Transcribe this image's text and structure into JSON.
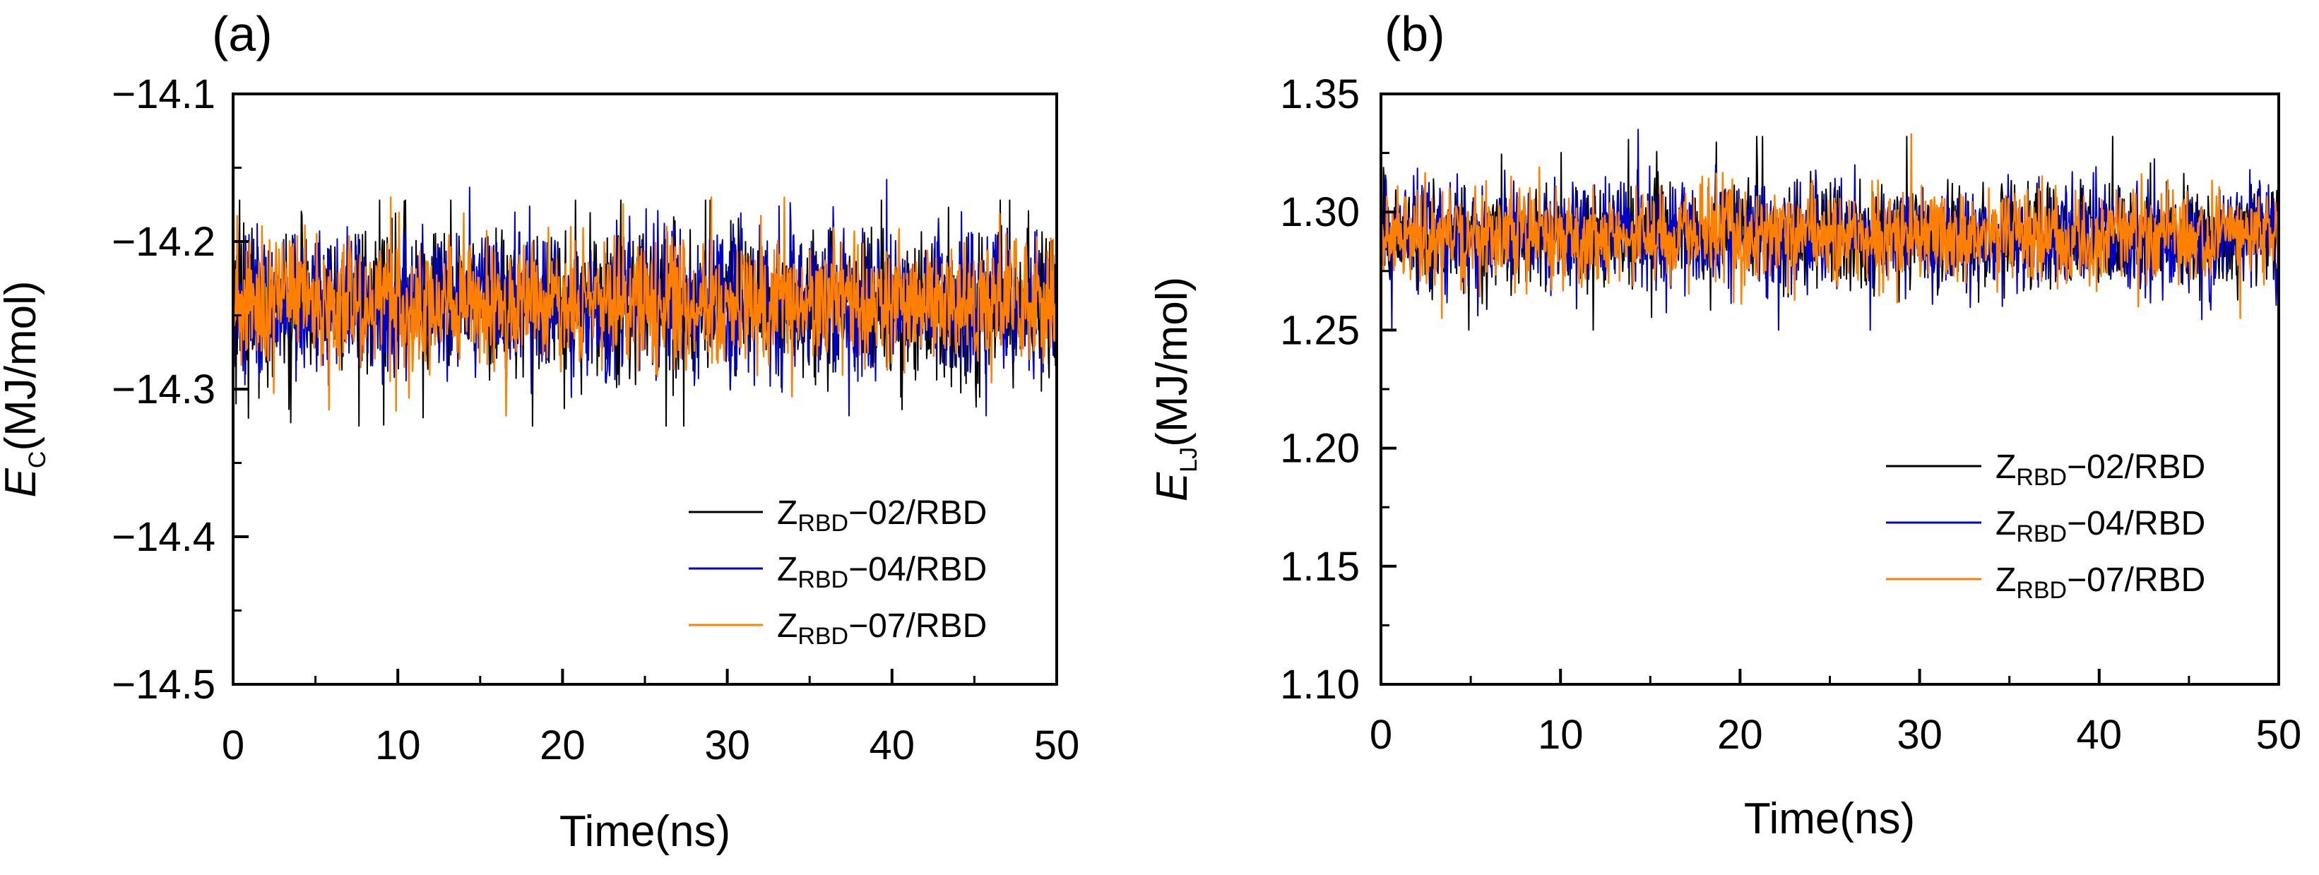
{
  "chart_data": [
    {
      "panel_label": "(a)",
      "type": "line",
      "xlabel": "Time(ns)",
      "ylabel_symbol": "E",
      "ylabel_sub": "C",
      "ylabel_unit": "(MJ/mol)",
      "xlim": [
        0,
        50
      ],
      "ylim": [
        -14.5,
        -14.1
      ],
      "xticks": [
        "0",
        "10",
        "20",
        "30",
        "40",
        "50"
      ],
      "yticks": [
        "−14.5",
        "−14.4",
        "−14.3",
        "−14.2",
        "−14.1"
      ],
      "legend_position": "lower-right",
      "series": [
        {
          "name_main": "Z",
          "name_sub": "RBD",
          "name_tail": "−02/RBD",
          "color": "#000000",
          "mean": -14.243,
          "fluctuation": 0.025,
          "spike_min": -14.325,
          "spike_max": -14.172
        },
        {
          "name_main": "Z",
          "name_sub": "RBD",
          "name_tail": "−04/RBD",
          "color": "#0000cc",
          "mean": -14.242,
          "fluctuation": 0.025,
          "spike_min": -14.318,
          "spike_max": -14.158
        },
        {
          "name_main": "Z",
          "name_sub": "RBD",
          "name_tail": "−07/RBD",
          "color": "#ff8000",
          "mean": -14.242,
          "fluctuation": 0.022,
          "spike_min": -14.318,
          "spike_max": -14.17
        }
      ]
    },
    {
      "panel_label": "(b)",
      "type": "line",
      "xlabel": "Time(ns)",
      "ylabel_symbol": "E",
      "ylabel_sub": "LJ",
      "ylabel_unit": "(MJ/mol)",
      "xlim": [
        0,
        50
      ],
      "ylim": [
        1.1,
        1.35
      ],
      "xticks": [
        "0",
        "10",
        "20",
        "30",
        "40",
        "50"
      ],
      "yticks": [
        "1.10",
        "1.15",
        "1.20",
        "1.25",
        "1.30",
        "1.35"
      ],
      "legend_position": "lower-right",
      "series": [
        {
          "name_main": "Z",
          "name_sub": "RBD",
          "name_tail": "−02/RBD",
          "color": "#000000",
          "mean": 1.29,
          "fluctuation": 0.011,
          "spike_min": 1.25,
          "spike_max": 1.332
        },
        {
          "name_main": "Z",
          "name_sub": "RBD",
          "name_tail": "−04/RBD",
          "color": "#0000cc",
          "mean": 1.29,
          "fluctuation": 0.011,
          "spike_min": 1.25,
          "spike_max": 1.335
        },
        {
          "name_main": "Z",
          "name_sub": "RBD",
          "name_tail": "−07/RBD",
          "color": "#ff8000",
          "mean": 1.29,
          "fluctuation": 0.01,
          "spike_min": 1.255,
          "spike_max": 1.333
        }
      ]
    }
  ]
}
